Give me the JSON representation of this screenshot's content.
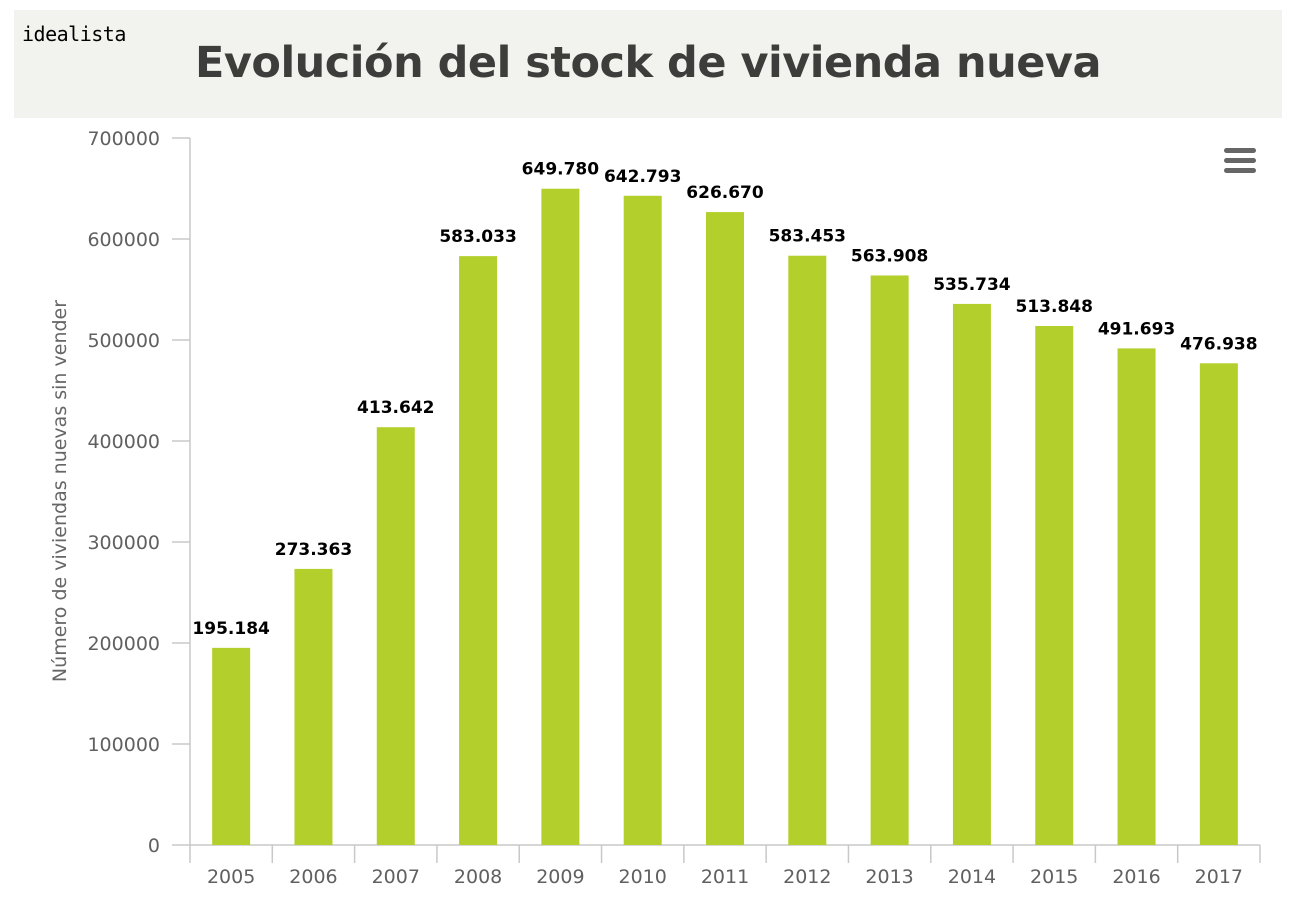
{
  "header": {
    "logo": "idealista",
    "title": "Evolución del stock de vivienda nueva"
  },
  "menu": {
    "icon": "hamburger-menu-icon"
  },
  "colors": {
    "bar": "#b3cf2b",
    "header_bg": "#f2f2ee",
    "title": "#3d3d3b"
  },
  "chart_data": {
    "type": "bar",
    "title": "Evolución del stock de vivienda nueva",
    "xlabel": "",
    "ylabel": "Número de viviendas nuevas sin vender",
    "ylim": [
      0,
      700000
    ],
    "yticks": [
      0,
      100000,
      200000,
      300000,
      400000,
      500000,
      600000,
      700000
    ],
    "ytick_labels": [
      "0",
      "100000",
      "200000",
      "300000",
      "400000",
      "500000",
      "600000",
      "700000"
    ],
    "categories": [
      "2005",
      "2006",
      "2007",
      "2008",
      "2009",
      "2010",
      "2011",
      "2012",
      "2013",
      "2014",
      "2015",
      "2016",
      "2017"
    ],
    "values": [
      195184,
      273363,
      413642,
      583033,
      649780,
      642793,
      626670,
      583453,
      563908,
      535734,
      513848,
      491693,
      476938
    ],
    "data_labels": [
      "195.184",
      "273.363",
      "413.642",
      "583.033",
      "649.780",
      "642.793",
      "626.670",
      "583.453",
      "563.908",
      "535.734",
      "513.848",
      "491.693",
      "476.938"
    ],
    "grid": false,
    "legend": "none"
  }
}
